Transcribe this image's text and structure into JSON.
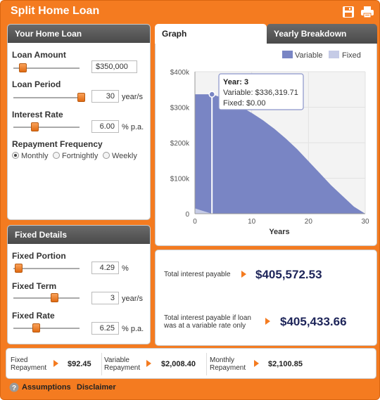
{
  "app": {
    "title": "Split Home Loan"
  },
  "icons": {
    "save": "save-icon",
    "print": "print-icon",
    "help": "help-icon"
  },
  "colors": {
    "accent": "#f47b20",
    "variable": "#7985c4",
    "fixed": "#c5cbe6",
    "header": "#555555",
    "value_text": "#1d2459"
  },
  "home_loan": {
    "heading": "Your Home Loan",
    "loan_amount": {
      "label": "Loan Amount",
      "value": "$350,000",
      "slider_level": 0.15
    },
    "loan_period": {
      "label": "Loan Period",
      "value": "30",
      "unit": "year/s",
      "slider_level": 1.0
    },
    "interest_rate": {
      "label": "Interest Rate",
      "value": "6.00",
      "unit": "% p.a.",
      "slider_level": 0.3
    },
    "repayment_frequency": {
      "label": "Repayment Frequency",
      "options": [
        "Monthly",
        "Fortnightly",
        "Weekly"
      ],
      "selected": "Monthly"
    }
  },
  "fixed_details": {
    "heading": "Fixed Details",
    "fixed_portion": {
      "label": "Fixed Portion",
      "value": "4.29",
      "unit": "%",
      "slider_level": 0.04
    },
    "fixed_term": {
      "label": "Fixed Term",
      "value": "3",
      "unit": "year/s",
      "slider_level": 0.6
    },
    "fixed_rate": {
      "label": "Fixed Rate",
      "value": "6.25",
      "unit": "% p.a.",
      "slider_level": 0.3
    }
  },
  "tabs": [
    {
      "label": "Graph",
      "active": true
    },
    {
      "label": "Yearly Breakdown",
      "active": false
    }
  ],
  "chart_data": {
    "type": "area",
    "xlabel": "Years",
    "ylabel": "",
    "xlim": [
      0,
      30
    ],
    "ylim": [
      0,
      400000
    ],
    "x_ticks": [
      "0",
      "10",
      "20",
      "30"
    ],
    "y_ticks": [
      "0",
      "$100k",
      "$200k",
      "$300k",
      "$400k"
    ],
    "legend": [
      "Variable",
      "Fixed"
    ],
    "legend_position": "top-right",
    "grid": true,
    "series": [
      {
        "name": "Variable",
        "x": [
          0,
          2,
          3,
          4,
          6,
          8,
          10,
          12,
          14,
          16,
          18,
          20,
          22,
          24,
          26,
          28,
          30
        ],
        "values": [
          336319.71,
          336319.71,
          336319.71,
          331000,
          318000,
          302000,
          284000,
          263000,
          239000,
          212000,
          182000,
          148000,
          114000,
          80000,
          50000,
          20000,
          0
        ]
      },
      {
        "name": "Fixed",
        "x": [
          0,
          1,
          2,
          3
        ],
        "values": [
          15000,
          10000,
          5000,
          0
        ]
      }
    ],
    "tooltip": {
      "year_label": "Year: 3",
      "variable_line": "Variable: $336,319.71",
      "fixed_line": "Fixed: $0.00",
      "x": 3
    }
  },
  "results": {
    "total_interest_label": "Total interest payable",
    "total_interest_value": "$405,572.53",
    "variable_interest_label_1": "Total interest payable if loan",
    "variable_interest_label_2": "was at a variable rate only",
    "variable_interest_value": "$405,433.66"
  },
  "repayments": {
    "fixed": {
      "label_1": "Fixed",
      "label_2": "Repayment",
      "value": "$92.45"
    },
    "variable": {
      "label_1": "Variable",
      "label_2": "Repayment",
      "value": "$2,008.40"
    },
    "monthly": {
      "label_1": "Monthly",
      "label_2": "Repayment",
      "value": "$2,100.85"
    }
  },
  "footer": {
    "assumptions": "Assumptions",
    "disclaimer": "Disclaimer"
  }
}
